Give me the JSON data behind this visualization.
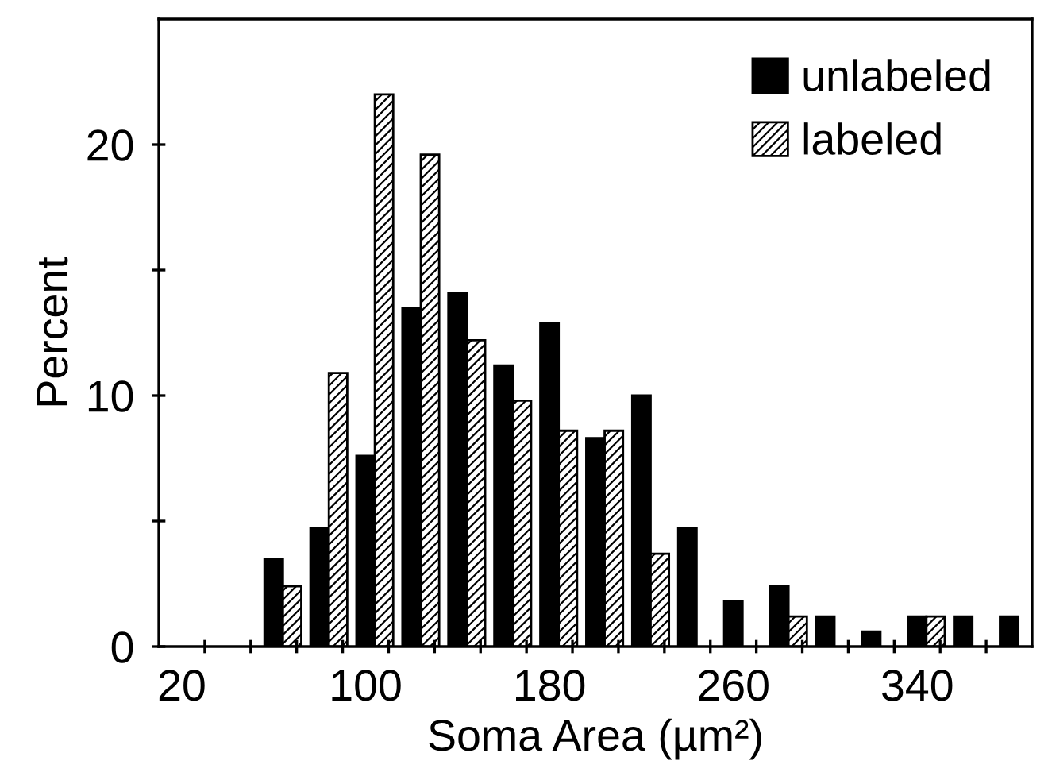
{
  "chart_data": {
    "type": "bar",
    "xlabel": "Soma Area (µm²)",
    "ylabel": "Percent",
    "categories": [
      "20",
      null,
      null,
      null,
      "100",
      null,
      null,
      null,
      "180",
      null,
      null,
      null,
      "260",
      null,
      null,
      null,
      "340",
      null,
      null
    ],
    "series": [
      {
        "name": "unlabeled",
        "color": "#000000",
        "values": [
          null,
          null,
          3.5,
          4.7,
          7.6,
          13.5,
          14.1,
          11.2,
          12.9,
          8.3,
          10.0,
          4.7,
          1.8,
          2.4,
          1.2,
          0.6,
          1.2,
          1.2,
          1.2
        ]
      },
      {
        "name": "labeled",
        "color": "#000000",
        "values": [
          null,
          null,
          2.4,
          10.9,
          22.0,
          19.6,
          12.2,
          9.8,
          8.6,
          8.6,
          3.7,
          null,
          null,
          1.2,
          null,
          null,
          1.2,
          null,
          null
        ]
      }
    ],
    "ylim": [
      0,
      25
    ],
    "yticks": [
      0,
      {
        "value": 5,
        "label": null
      },
      10,
      {
        "value": 15,
        "label": null
      },
      20
    ],
    "grid": false,
    "legend": "top right"
  }
}
